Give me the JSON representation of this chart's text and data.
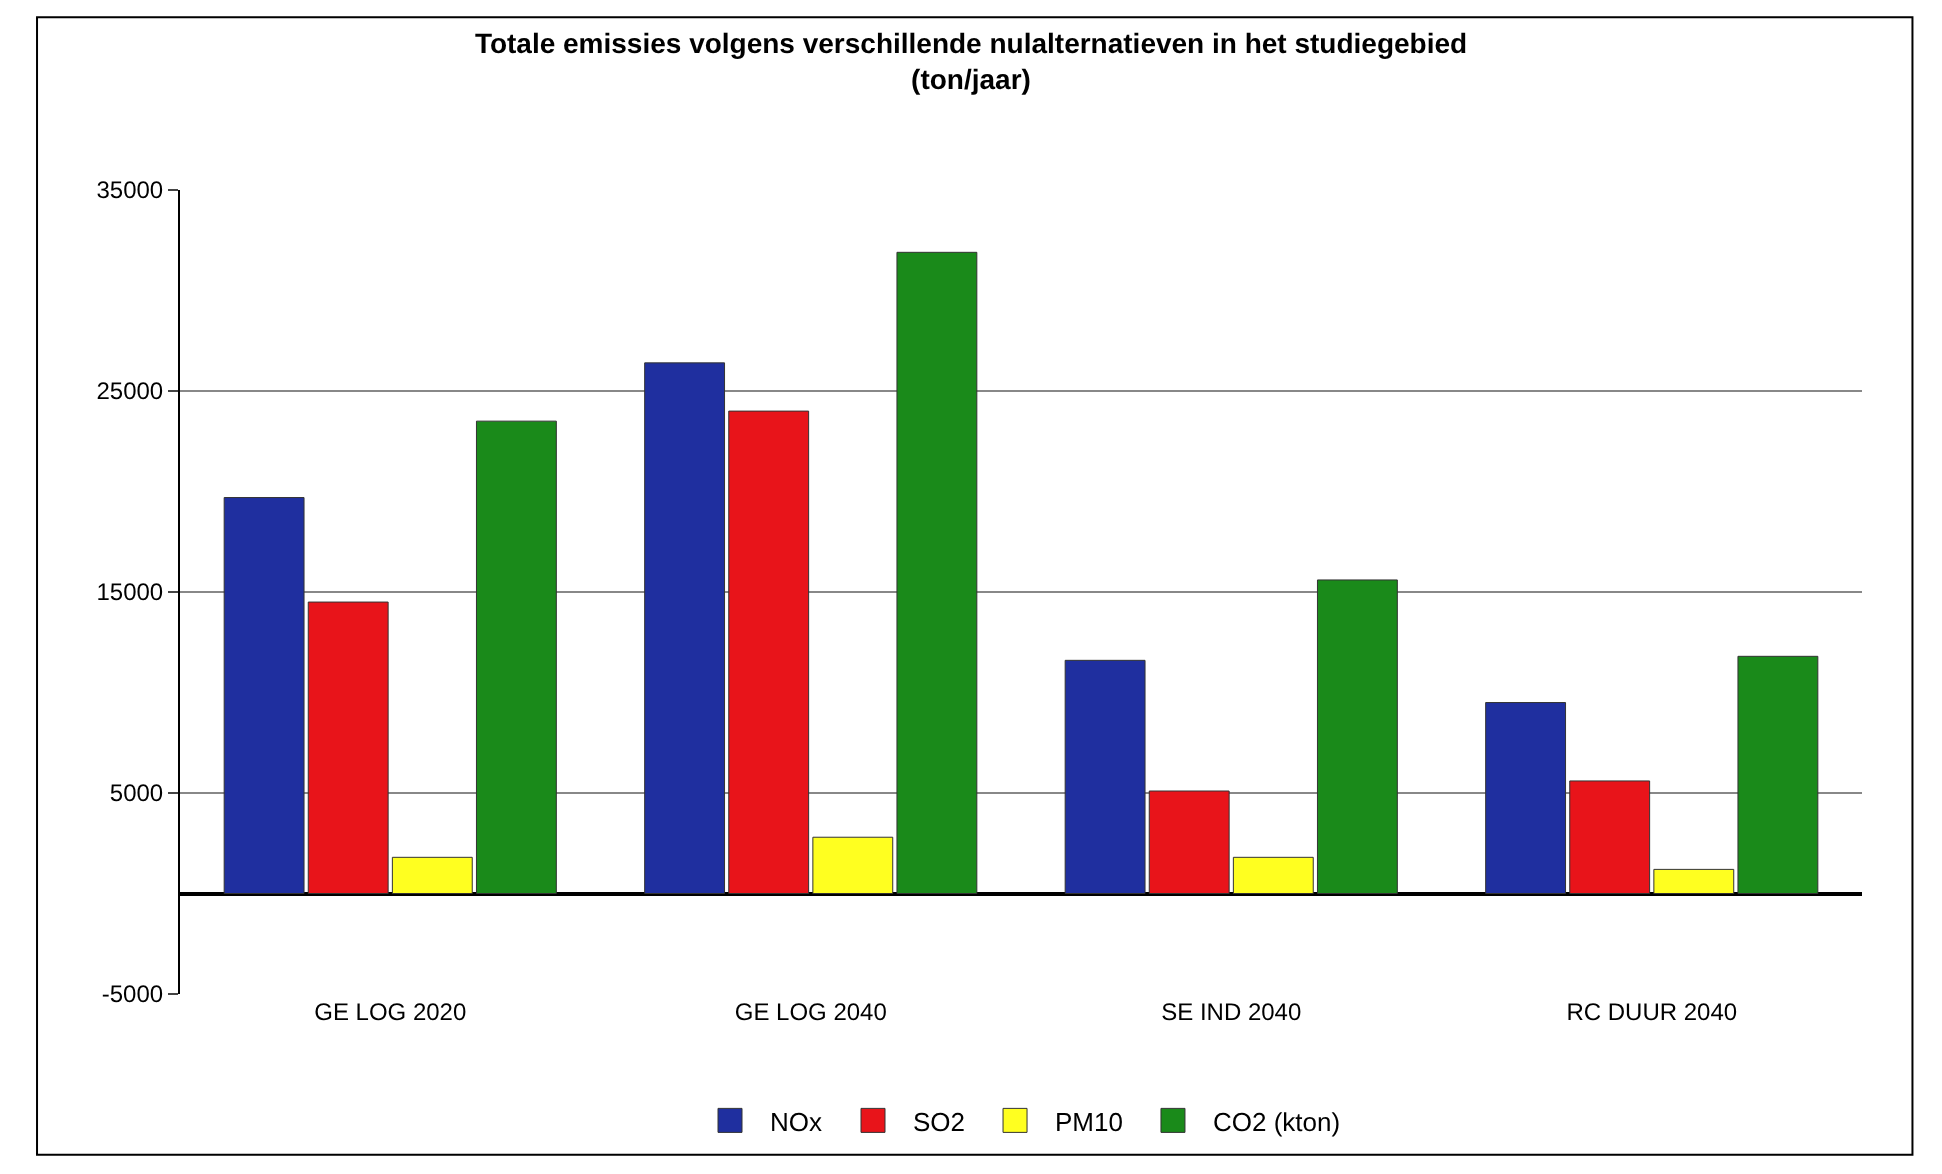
{
  "chart_data": {
    "type": "bar",
    "title": "Totale emissies volgens verschillende nulalternatieven in het studiegebied\n(ton/jaar)",
    "categories": [
      "GE LOG 2020",
      "GE LOG 2040",
      "SE IND 2040",
      "RC DUUR 2040"
    ],
    "series": [
      {
        "name": "NOx",
        "color": "#1f2f9f",
        "values": [
          19700,
          26400,
          11600,
          9500
        ]
      },
      {
        "name": "SO2",
        "color": "#e8141a",
        "values": [
          14500,
          24000,
          5100,
          5600
        ]
      },
      {
        "name": "PM10",
        "color": "#ffff20",
        "values": [
          1800,
          2800,
          1800,
          1200
        ]
      },
      {
        "name": "CO2 (kton)",
        "color": "#1a8a1a",
        "values": [
          23500,
          31900,
          15600,
          11800
        ]
      }
    ],
    "ylim": [
      -5000,
      35000
    ],
    "yticks": [
      -5000,
      5000,
      15000,
      25000,
      35000
    ],
    "grid": "y",
    "legend": "bottom"
  }
}
